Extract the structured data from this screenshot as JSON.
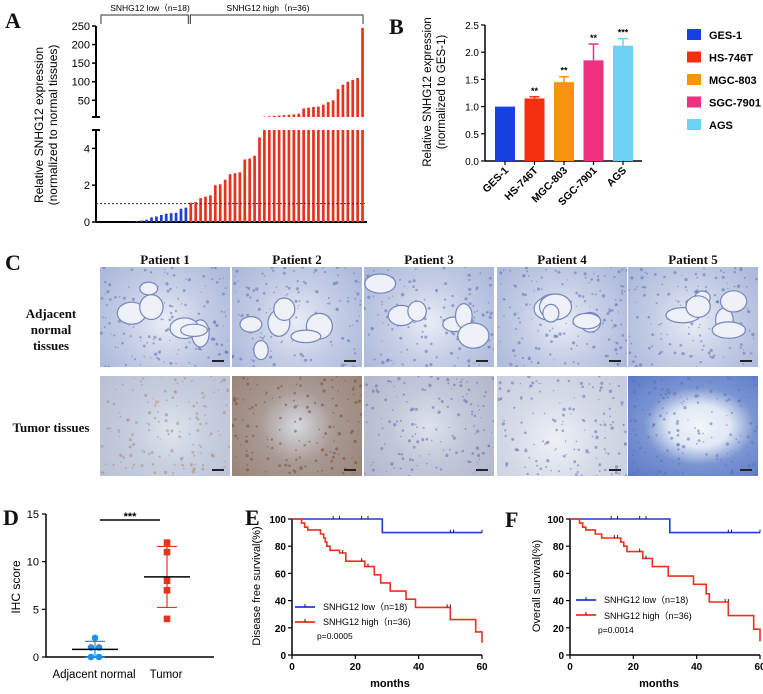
{
  "panels": {
    "A": "A",
    "B": "B",
    "C": "C",
    "D": "D",
    "E": "E",
    "F": "F"
  },
  "chart_data": [
    {
      "id": "A",
      "type": "bar",
      "title": "",
      "ylabel_line1": "Relative SNHG12 expression",
      "ylabel_line2": "(normalized to normal tissues)",
      "xlabel": "",
      "broken_axis": true,
      "lower_ticks": [
        0,
        2,
        4
      ],
      "upper_ticks": [
        50,
        100,
        150,
        200,
        250
      ],
      "lower_ylim": [
        0,
        5
      ],
      "upper_ylim": [
        5,
        250
      ],
      "reference_line": 1,
      "groups": [
        {
          "label": "SNHG12 low（n=18)",
          "color": "#1f3fd1",
          "n": 18
        },
        {
          "label": "SNHG12 high（n=36)",
          "color": "#e8321e",
          "n": 36
        }
      ],
      "values": [
        0.0,
        0.0,
        0.0,
        0.0,
        0.0,
        0.0,
        0.02,
        0.05,
        0.08,
        0.12,
        0.25,
        0.3,
        0.38,
        0.45,
        0.48,
        0.5,
        0.72,
        0.78,
        1.05,
        1.08,
        1.3,
        1.38,
        1.45,
        2.0,
        2.05,
        2.3,
        2.6,
        2.65,
        2.7,
        3.4,
        3.45,
        3.6,
        4.6,
        6,
        7,
        8,
        9,
        10,
        11,
        12,
        14,
        28,
        30,
        32,
        33,
        38,
        45,
        50,
        80,
        92,
        100,
        105,
        110,
        245
      ]
    },
    {
      "id": "B",
      "type": "bar",
      "title": "",
      "ylabel_line1": "Relative SNHG12 expression",
      "ylabel_line2": "(normalized to GES-1)",
      "categories": [
        "GES-1",
        "HS-746T",
        "MGC-803",
        "SGC-7901",
        "AGS"
      ],
      "values": [
        1.0,
        1.15,
        1.45,
        1.85,
        2.12
      ],
      "errors": [
        0,
        0.03,
        0.1,
        0.3,
        0.13
      ],
      "significance": [
        "",
        "**",
        "**",
        "**",
        "***"
      ],
      "colors": [
        "#1740e0",
        "#f2300f",
        "#f7930f",
        "#ef2f7f",
        "#6fd0f5"
      ],
      "yticks": [
        "0.0",
        "0.5",
        "1.0",
        "1.5",
        "2.0",
        "2.5"
      ],
      "ylim": [
        0,
        2.5
      ],
      "legend": [
        "GES-1",
        "HS-746T",
        "MGC-803",
        "SGC-7901",
        "AGS"
      ],
      "legend_position": "right"
    },
    {
      "id": "D",
      "type": "scatter",
      "ylabel": "IHC score",
      "categories": [
        "Adjacent normal",
        "Tumor"
      ],
      "yticks": [
        0,
        5,
        10,
        15
      ],
      "ylim": [
        0,
        15
      ],
      "series": [
        {
          "name": "Adjacent normal",
          "color": "#1e90e8",
          "marker": "circle",
          "values": [
            2,
            1,
            1,
            0,
            0
          ],
          "mean": 0.8,
          "sd": 0.84
        },
        {
          "name": "Tumor",
          "color": "#e8321e",
          "marker": "square",
          "values": [
            12,
            11,
            8,
            7,
            4
          ],
          "mean": 8.4,
          "sd": 3.2
        }
      ],
      "significance": "***"
    },
    {
      "id": "E",
      "type": "line",
      "ylabel": "Disease free survival(%)",
      "xlabel": "months",
      "xticks": [
        0,
        20,
        40,
        60
      ],
      "yticks": [
        0,
        20,
        40,
        60,
        80,
        100
      ],
      "xlim": [
        0,
        60
      ],
      "ylim": [
        0,
        100
      ],
      "pvalue": "p=0.0005",
      "legend_position": "bottom-left",
      "series": [
        {
          "name": "SNHG12 low（n=18)",
          "color": "#1f3fd1",
          "steps": [
            [
              0,
              100
            ],
            [
              28.5,
              100
            ],
            [
              28.5,
              90
            ],
            [
              60,
              90
            ]
          ],
          "censors": [
            [
              13,
              100
            ],
            [
              15,
              100
            ],
            [
              22,
              100
            ],
            [
              24,
              100
            ],
            [
              50,
              90
            ],
            [
              51,
              90
            ],
            [
              60,
              90
            ]
          ]
        },
        {
          "name": "SNHG12 high（n=36)",
          "color": "#e8321e",
          "steps": [
            [
              0,
              100
            ],
            [
              3,
              100
            ],
            [
              3,
              97
            ],
            [
              4,
              97
            ],
            [
              4,
              94
            ],
            [
              5,
              94
            ],
            [
              5,
              92
            ],
            [
              9,
              92
            ],
            [
              9,
              89
            ],
            [
              10,
              89
            ],
            [
              10,
              86
            ],
            [
              10.5,
              86
            ],
            [
              10.5,
              83
            ],
            [
              11,
              83
            ],
            [
              11,
              80
            ],
            [
              12,
              80
            ],
            [
              12,
              77
            ],
            [
              15,
              77
            ],
            [
              15,
              75
            ],
            [
              17,
              75
            ],
            [
              17,
              69
            ],
            [
              23,
              69
            ],
            [
              23,
              65
            ],
            [
              26,
              65
            ],
            [
              26,
              59
            ],
            [
              28,
              59
            ],
            [
              28,
              53
            ],
            [
              31,
              53
            ],
            [
              31,
              47
            ],
            [
              36,
              47
            ],
            [
              36,
              41
            ],
            [
              39,
              41
            ],
            [
              39,
              35
            ],
            [
              50,
              35
            ],
            [
              50,
              26
            ],
            [
              58,
              26
            ],
            [
              58,
              17
            ],
            [
              60,
              17
            ],
            [
              60,
              9
            ]
          ],
          "censors": [
            [
              16,
              75
            ],
            [
              22,
              69
            ],
            [
              24,
              65
            ],
            [
              49,
              35
            ],
            [
              50,
              35
            ]
          ]
        }
      ]
    },
    {
      "id": "F",
      "type": "line",
      "ylabel": "Overall survival(%)",
      "xlabel": "months",
      "xticks": [
        0,
        20,
        40,
        60
      ],
      "yticks": [
        0,
        20,
        40,
        60,
        80,
        100
      ],
      "xlim": [
        0,
        60
      ],
      "ylim": [
        0,
        100
      ],
      "pvalue": "p=0.0014",
      "legend_position": "bottom-left",
      "series": [
        {
          "name": "SNHG12 low（n=18)",
          "color": "#1f3fd1",
          "steps": [
            [
              0,
              100
            ],
            [
              31.5,
              100
            ],
            [
              31.5,
              90
            ],
            [
              60,
              90
            ]
          ],
          "censors": [
            [
              13,
              100
            ],
            [
              15,
              100
            ],
            [
              22,
              100
            ],
            [
              24,
              100
            ],
            [
              50,
              90
            ],
            [
              51,
              90
            ],
            [
              60,
              90
            ]
          ]
        },
        {
          "name": "SNHG12 high（n=36)",
          "color": "#e8321e",
          "steps": [
            [
              0,
              100
            ],
            [
              3,
              100
            ],
            [
              3,
              97
            ],
            [
              4,
              97
            ],
            [
              4,
              94
            ],
            [
              5,
              94
            ],
            [
              5,
              92
            ],
            [
              8,
              92
            ],
            [
              8,
              89
            ],
            [
              10,
              89
            ],
            [
              10,
              86
            ],
            [
              16,
              86
            ],
            [
              16,
              83
            ],
            [
              17,
              83
            ],
            [
              17,
              80
            ],
            [
              18,
              80
            ],
            [
              18,
              76
            ],
            [
              23,
              76
            ],
            [
              23,
              71
            ],
            [
              26,
              71
            ],
            [
              26,
              65
            ],
            [
              31,
              65
            ],
            [
              31,
              58
            ],
            [
              39,
              58
            ],
            [
              39,
              52
            ],
            [
              43,
              52
            ],
            [
              43,
              45
            ],
            [
              44,
              45
            ],
            [
              44,
              39
            ],
            [
              50,
              39
            ],
            [
              50,
              29
            ],
            [
              58,
              29
            ],
            [
              58,
              19
            ],
            [
              60,
              19
            ],
            [
              60,
              10
            ]
          ],
          "censors": [
            [
              14,
              86
            ],
            [
              15,
              86
            ],
            [
              22,
              76
            ],
            [
              24,
              71
            ],
            [
              49,
              39
            ],
            [
              50,
              39
            ]
          ]
        }
      ]
    }
  ],
  "panelC": {
    "patients": [
      "Patient 1",
      "Patient 2",
      "Patient 3",
      "Patient 4",
      "Patient 5"
    ],
    "row_labels": [
      [
        "Adjacent normal",
        "tissues"
      ],
      [
        "Tumor tissues"
      ]
    ]
  }
}
